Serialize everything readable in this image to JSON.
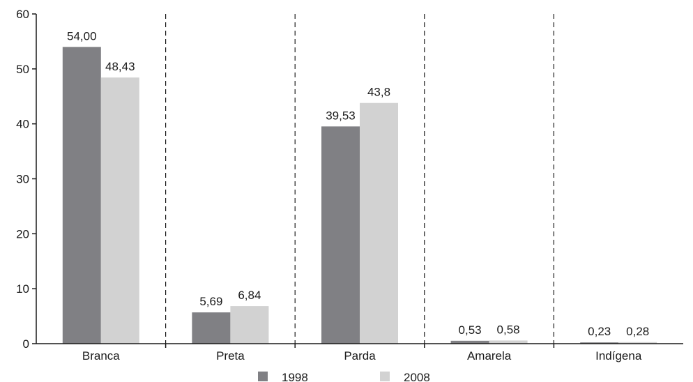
{
  "chart_data": {
    "type": "bar",
    "title": "",
    "xlabel": "",
    "ylabel": "",
    "categories": [
      "Branca",
      "Preta",
      "Parda",
      "Amarela",
      "Indígena"
    ],
    "series": [
      {
        "name": "1998",
        "color": "#808084",
        "values": [
          54.0,
          5.69,
          39.53,
          0.53,
          0.23
        ],
        "labels": [
          "54,00",
          "5,69",
          "39,53",
          "0,53",
          "0,23"
        ]
      },
      {
        "name": "2008",
        "color": "#d2d2d2",
        "values": [
          48.43,
          6.84,
          43.8,
          0.58,
          0.28
        ],
        "labels": [
          "48,43",
          "6,84",
          "43,8",
          "0,58",
          "0,28"
        ]
      }
    ],
    "ylim": [
      0,
      60
    ],
    "yticks": [
      0,
      10,
      20,
      30,
      40,
      50,
      60
    ],
    "grid": false,
    "category_separators": "dashed",
    "legend": {
      "placement": "bottom-center"
    }
  }
}
